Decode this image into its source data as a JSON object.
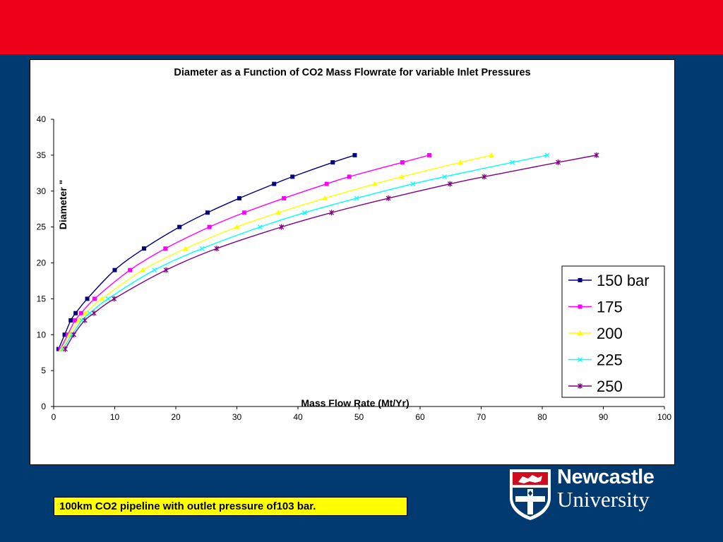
{
  "caption": "100km CO2 pipeline with outlet pressure of103 bar.",
  "logo": {
    "name": "Newcastle",
    "subtitle": "University"
  },
  "colors": {
    "top_bar": "#ee0018",
    "background": "#003a70",
    "caption_bg": "#ffff00"
  },
  "chart_data": {
    "type": "line",
    "title": "Diameter as a Function of CO2 Mass Flowrate for variable Inlet Pressures",
    "xlabel": "Mass Flow Rate (Mt/Yr)",
    "ylabel": "Diameter \"",
    "xlim": [
      0,
      100
    ],
    "ylim": [
      0,
      40
    ],
    "xticks": [
      0,
      10,
      20,
      30,
      40,
      50,
      60,
      70,
      80,
      90,
      100
    ],
    "yticks": [
      0,
      5,
      10,
      15,
      20,
      25,
      30,
      35,
      40
    ],
    "grid": false,
    "legend": "right",
    "series": [
      {
        "name": "150 bar",
        "color": "#000080",
        "marker": "square",
        "points": [
          [
            0.8,
            8
          ],
          [
            1.8,
            10
          ],
          [
            2.8,
            12
          ],
          [
            3.6,
            13
          ],
          [
            5.5,
            15
          ],
          [
            10,
            19
          ],
          [
            14.8,
            22
          ],
          [
            20.6,
            25
          ],
          [
            25.2,
            27
          ],
          [
            30.4,
            29
          ],
          [
            36.1,
            31
          ],
          [
            39.1,
            32
          ],
          [
            45.7,
            34
          ],
          [
            49.3,
            35
          ]
        ]
      },
      {
        "name": "175",
        "color": "#ff00ff",
        "marker": "square",
        "points": [
          [
            1.1,
            8
          ],
          [
            2.3,
            10
          ],
          [
            3.5,
            12
          ],
          [
            4.5,
            13
          ],
          [
            6.7,
            15
          ],
          [
            12.5,
            19
          ],
          [
            18.3,
            22
          ],
          [
            25.5,
            25
          ],
          [
            31.2,
            27
          ],
          [
            37.7,
            29
          ],
          [
            44.7,
            31
          ],
          [
            48.4,
            32
          ],
          [
            57.1,
            34
          ],
          [
            61.5,
            35
          ]
        ]
      },
      {
        "name": "200",
        "color": "#ffff00",
        "marker": "triangle",
        "points": [
          [
            1.3,
            8
          ],
          [
            2.6,
            10
          ],
          [
            4.1,
            12
          ],
          [
            5.2,
            13
          ],
          [
            7.9,
            15
          ],
          [
            14.6,
            19
          ],
          [
            21.6,
            22
          ],
          [
            30,
            25
          ],
          [
            36.8,
            27
          ],
          [
            44.4,
            29
          ],
          [
            52.6,
            31
          ],
          [
            57,
            32
          ],
          [
            66.6,
            34
          ],
          [
            71.7,
            35
          ]
        ]
      },
      {
        "name": "225",
        "color": "#00ffff",
        "marker": "x",
        "points": [
          [
            1.5,
            8
          ],
          [
            3,
            10
          ],
          [
            4.6,
            12
          ],
          [
            5.9,
            13
          ],
          [
            8.9,
            15
          ],
          [
            16.5,
            19
          ],
          [
            24.3,
            22
          ],
          [
            33.8,
            25
          ],
          [
            41.1,
            27
          ],
          [
            49.6,
            29
          ],
          [
            58.8,
            31
          ],
          [
            64,
            32
          ],
          [
            75.1,
            34
          ],
          [
            80.8,
            35
          ]
        ]
      },
      {
        "name": "250",
        "color": "#800080",
        "marker": "asterisk",
        "points": [
          [
            1.9,
            8
          ],
          [
            3.3,
            10
          ],
          [
            5.1,
            12
          ],
          [
            6.6,
            13
          ],
          [
            9.9,
            15
          ],
          [
            18.4,
            19
          ],
          [
            26.7,
            22
          ],
          [
            37.3,
            25
          ],
          [
            45.5,
            27
          ],
          [
            54.8,
            29
          ],
          [
            64.9,
            31
          ],
          [
            70.5,
            32
          ],
          [
            82.6,
            34
          ],
          [
            88.9,
            35
          ]
        ]
      }
    ]
  }
}
